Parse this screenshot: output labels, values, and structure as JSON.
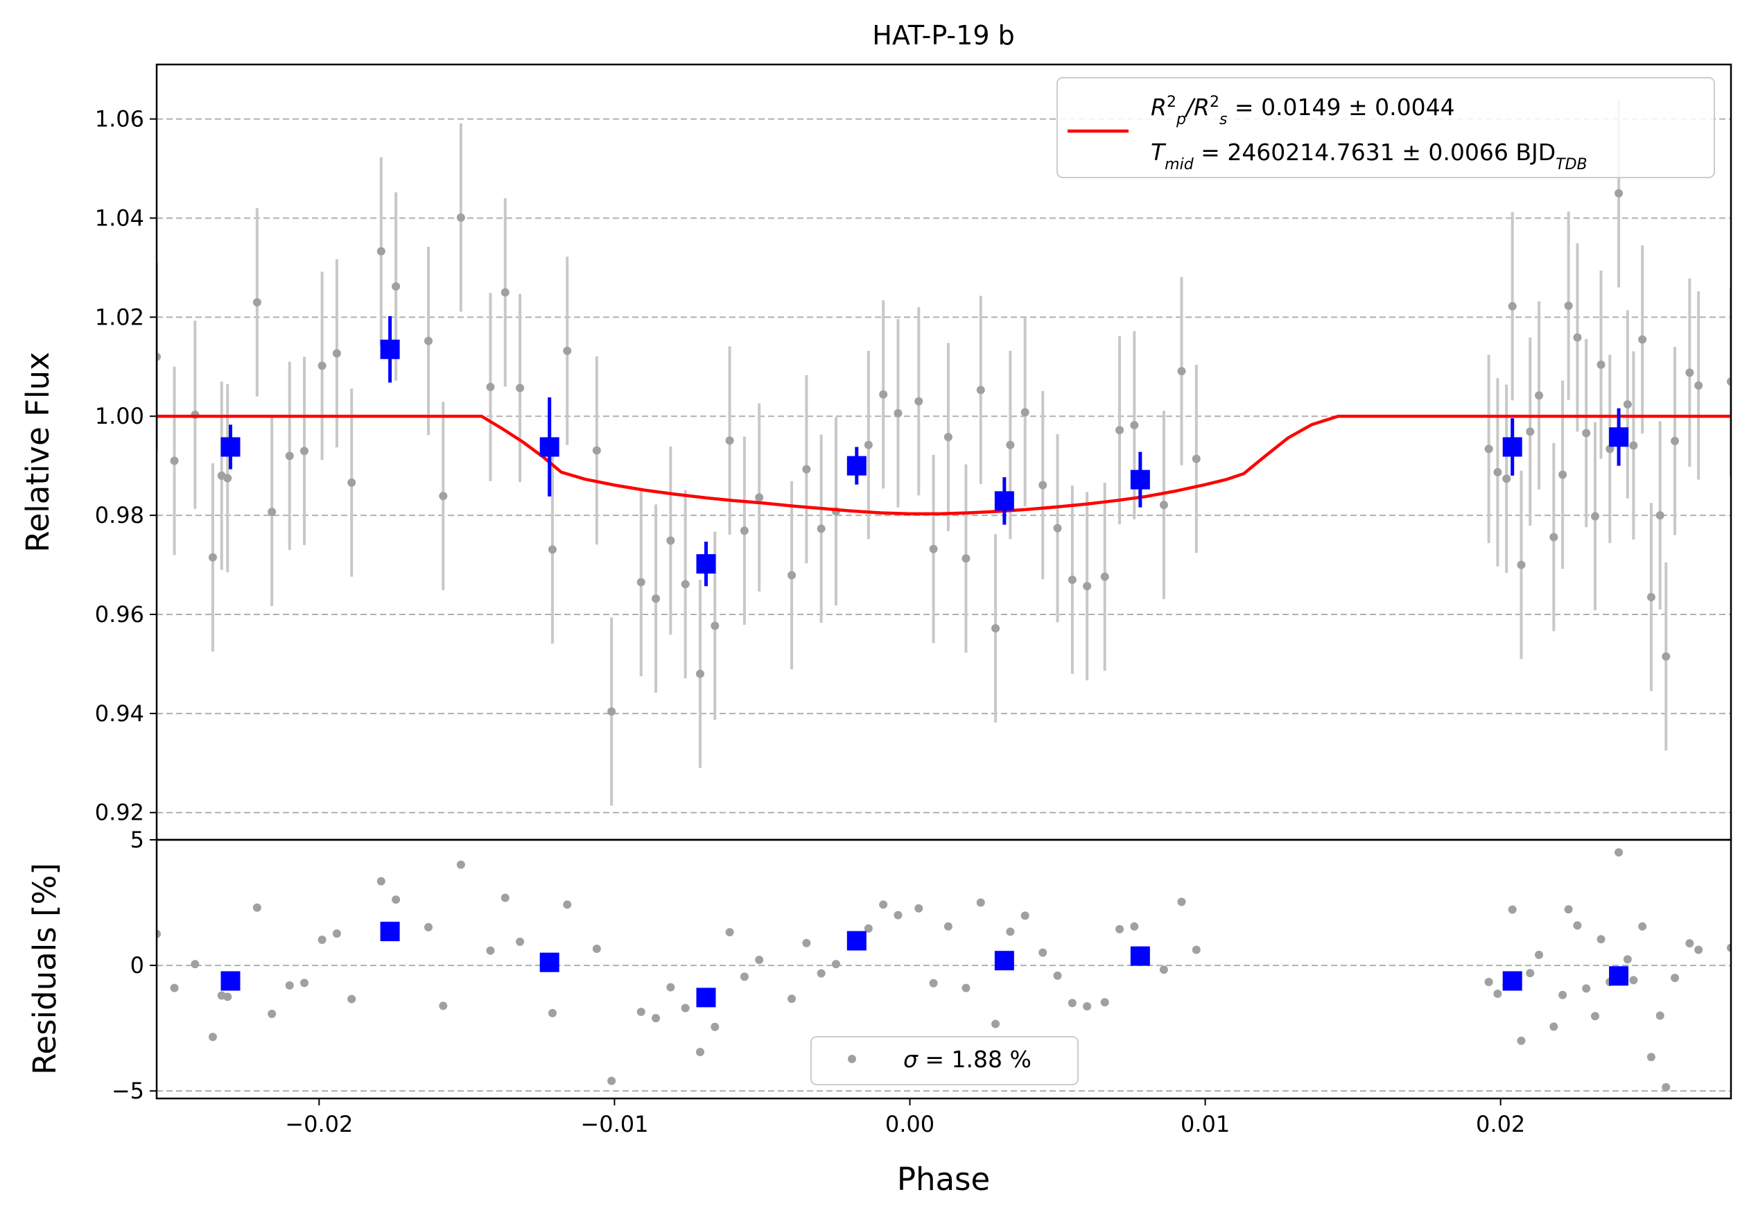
{
  "chart_data": {
    "type": "scatter",
    "title": "HAT-P-19 b",
    "xlabel": "Phase",
    "xlim": [
      -0.0255,
      0.0278
    ],
    "x_ticks": [
      -0.02,
      -0.01,
      0.0,
      0.01,
      0.02
    ],
    "x_tick_labels": [
      "−0.02",
      "−0.01",
      "0.00",
      "0.01",
      "0.02"
    ],
    "flux_panel": {
      "ylabel": "Relative Flux",
      "ylim": [
        0.9145,
        1.071
      ],
      "y_ticks": [
        0.92,
        0.94,
        0.96,
        0.98,
        1.0,
        1.02,
        1.04,
        1.06
      ],
      "y_tick_labels": [
        "0.92",
        "0.94",
        "0.96",
        "0.98",
        "1.00",
        "1.02",
        "1.04",
        "1.06"
      ],
      "grid": "horizontal dashed",
      "legend_position": "top-right",
      "legend": {
        "rp_label_main": "R",
        "rp_label_sub1": "p",
        "rp_label_mid": "/R",
        "rp_label_sub2": "s",
        "rp_label_value": " = 0.0149 ± 0.0044",
        "tmid_label_main": "T",
        "tmid_label_sub": "mid",
        "tmid_label_value": " = 2460214.7631 ± 0.0066 BJD",
        "tmid_label_unit_sub": "TDB"
      },
      "model": {
        "color": "#ff0000",
        "points": [
          [
            -0.0255,
            1.0
          ],
          [
            -0.0145,
            1.0
          ],
          [
            -0.0138,
            0.9975
          ],
          [
            -0.0131,
            0.9948
          ],
          [
            -0.0124,
            0.9917
          ],
          [
            -0.0118,
            0.9887
          ],
          [
            -0.011,
            0.9873
          ],
          [
            -0.01,
            0.9861
          ],
          [
            -0.009,
            0.9851
          ],
          [
            -0.008,
            0.9843
          ],
          [
            -0.007,
            0.9836
          ],
          [
            -0.006,
            0.983
          ],
          [
            -0.005,
            0.9825
          ],
          [
            -0.004,
            0.9819
          ],
          [
            -0.003,
            0.9814
          ],
          [
            -0.002,
            0.9809
          ],
          [
            -0.001,
            0.9805
          ],
          [
            0.0,
            0.9803
          ],
          [
            0.001,
            0.9803
          ],
          [
            0.002,
            0.9805
          ],
          [
            0.003,
            0.9808
          ],
          [
            0.004,
            0.9812
          ],
          [
            0.005,
            0.9817
          ],
          [
            0.006,
            0.9823
          ],
          [
            0.007,
            0.983
          ],
          [
            0.008,
            0.9838
          ],
          [
            0.009,
            0.9849
          ],
          [
            0.01,
            0.9862
          ],
          [
            0.0107,
            0.9872
          ],
          [
            0.0113,
            0.9884
          ],
          [
            0.012,
            0.9918
          ],
          [
            0.0128,
            0.9956
          ],
          [
            0.0136,
            0.9983
          ],
          [
            0.0145,
            1.0
          ],
          [
            0.0278,
            1.0
          ]
        ]
      },
      "raw_points": {
        "color": "#808080",
        "points": [
          [
            -0.0255,
            1.012,
            0.019
          ],
          [
            -0.0249,
            0.991,
            0.019
          ],
          [
            -0.0242,
            1.0003,
            0.019
          ],
          [
            -0.0236,
            0.9715,
            0.019
          ],
          [
            -0.0233,
            0.988,
            0.019
          ],
          [
            -0.0231,
            0.9875,
            0.019
          ],
          [
            -0.0221,
            1.023,
            0.019
          ],
          [
            -0.0216,
            0.9807,
            0.019
          ],
          [
            -0.021,
            0.992,
            0.019
          ],
          [
            -0.0205,
            0.993,
            0.019
          ],
          [
            -0.0199,
            1.0102,
            0.019
          ],
          [
            -0.0194,
            1.0127,
            0.019
          ],
          [
            -0.0189,
            0.9866,
            0.019
          ],
          [
            -0.0179,
            1.0333,
            0.019
          ],
          [
            -0.0174,
            1.0262,
            0.019
          ],
          [
            -0.0163,
            1.0152,
            0.019
          ],
          [
            -0.0158,
            0.9839,
            0.019
          ],
          [
            -0.0152,
            1.0401,
            0.019
          ],
          [
            -0.0142,
            1.0059,
            0.019
          ],
          [
            -0.0137,
            1.025,
            0.019
          ],
          [
            -0.0132,
            1.0057,
            0.019
          ],
          [
            -0.0121,
            0.9731,
            0.019
          ],
          [
            -0.0116,
            1.0132,
            0.019
          ],
          [
            -0.0106,
            0.9931,
            0.019
          ],
          [
            -0.0101,
            0.9404,
            0.019
          ],
          [
            -0.0091,
            0.9665,
            0.019
          ],
          [
            -0.0086,
            0.9632,
            0.019
          ],
          [
            -0.0081,
            0.9749,
            0.019
          ],
          [
            -0.0076,
            0.9661,
            0.019
          ],
          [
            -0.0071,
            0.948,
            0.019
          ],
          [
            -0.0066,
            0.9577,
            0.019
          ],
          [
            -0.0061,
            0.9951,
            0.019
          ],
          [
            -0.0056,
            0.9769,
            0.019
          ],
          [
            -0.0051,
            0.9836,
            0.019
          ],
          [
            -0.004,
            0.9679,
            0.019
          ],
          [
            -0.0035,
            0.9893,
            0.019
          ],
          [
            -0.003,
            0.9773,
            0.019
          ],
          [
            -0.0025,
            0.9808,
            0.019
          ],
          [
            -0.0014,
            0.9942,
            0.019
          ],
          [
            -0.0009,
            1.0044,
            0.019
          ],
          [
            -0.0004,
            1.0006,
            0.019
          ],
          [
            0.0003,
            1.003,
            0.019
          ],
          [
            0.0008,
            0.9732,
            0.019
          ],
          [
            0.0013,
            0.9958,
            0.019
          ],
          [
            0.0019,
            0.9713,
            0.019
          ],
          [
            0.0024,
            1.0053,
            0.019
          ],
          [
            0.0029,
            0.9572,
            0.019
          ],
          [
            0.0034,
            0.9942,
            0.019
          ],
          [
            0.0039,
            1.0008,
            0.019
          ],
          [
            0.0045,
            0.9861,
            0.019
          ],
          [
            0.005,
            0.9774,
            0.019
          ],
          [
            0.0055,
            0.967,
            0.019
          ],
          [
            0.006,
            0.9657,
            0.019
          ],
          [
            0.0066,
            0.9676,
            0.019
          ],
          [
            0.0071,
            0.9972,
            0.019
          ],
          [
            0.0076,
            0.9982,
            0.019
          ],
          [
            0.0086,
            0.9821,
            0.019
          ],
          [
            0.0092,
            1.0091,
            0.019
          ],
          [
            0.0097,
            0.9914,
            0.019
          ],
          [
            0.0196,
            0.9934,
            0.019
          ],
          [
            0.0199,
            0.9887,
            0.019
          ],
          [
            0.0202,
            0.9874,
            0.019
          ],
          [
            0.0204,
            1.0222,
            0.019
          ],
          [
            0.0207,
            0.97,
            0.019
          ],
          [
            0.021,
            0.9969,
            0.019
          ],
          [
            0.0213,
            1.0042,
            0.019
          ],
          [
            0.0218,
            0.9756,
            0.019
          ],
          [
            0.0221,
            0.9882,
            0.019
          ],
          [
            0.0223,
            1.0223,
            0.019
          ],
          [
            0.0226,
            1.0159,
            0.019
          ],
          [
            0.0229,
            0.9966,
            0.019
          ],
          [
            0.0232,
            0.9798,
            0.019
          ],
          [
            0.0234,
            1.0104,
            0.019
          ],
          [
            0.0237,
            0.9934,
            0.019
          ],
          [
            0.024,
            1.045,
            0.019
          ],
          [
            0.0243,
            1.0024,
            0.019
          ],
          [
            0.0245,
            0.9941,
            0.019
          ],
          [
            0.0248,
            1.0155,
            0.019
          ],
          [
            0.0251,
            0.9635,
            0.019
          ],
          [
            0.0254,
            0.98,
            0.019
          ],
          [
            0.0256,
            0.9515,
            0.019
          ],
          [
            0.0259,
            0.995,
            0.019
          ],
          [
            0.0264,
            1.0088,
            0.019
          ],
          [
            0.0267,
            1.0062,
            0.019
          ],
          [
            0.0278,
            1.007,
            0.019
          ]
        ]
      },
      "binned_points": {
        "color": "#0000ff",
        "points": [
          [
            -0.023,
            0.9938,
            0.0045
          ],
          [
            -0.0176,
            1.0135,
            0.0067
          ],
          [
            -0.0122,
            0.9938,
            0.01
          ],
          [
            -0.0069,
            0.9702,
            0.0045
          ],
          [
            -0.0018,
            0.99,
            0.0038
          ],
          [
            0.0032,
            0.9829,
            0.0048
          ],
          [
            0.0078,
            0.9872,
            0.0056
          ],
          [
            0.0204,
            0.9938,
            0.0058
          ],
          [
            0.024,
            0.9958,
            0.0058
          ]
        ]
      }
    },
    "residual_panel": {
      "ylabel": "Residuals [%]",
      "ylim": [
        -5.3,
        5.0
      ],
      "y_ticks": [
        -5,
        0,
        5
      ],
      "y_tick_labels": [
        "−5",
        "0",
        "5"
      ],
      "legend_position": "bottom-center",
      "legend": {
        "sigma_symbol": "σ",
        "sigma_value": " = 1.88 %"
      },
      "raw_points": [
        [
          -0.0255,
          1.25
        ],
        [
          -0.0249,
          -0.9
        ],
        [
          -0.0242,
          0.05
        ],
        [
          -0.0236,
          -2.85
        ],
        [
          -0.0233,
          -1.2
        ],
        [
          -0.0231,
          -1.25
        ],
        [
          -0.0221,
          2.3
        ],
        [
          -0.0216,
          -1.93
        ],
        [
          -0.021,
          -0.8
        ],
        [
          -0.0205,
          -0.7
        ],
        [
          -0.0199,
          1.02
        ],
        [
          -0.0194,
          1.27
        ],
        [
          -0.0189,
          -1.34
        ],
        [
          -0.0179,
          3.35
        ],
        [
          -0.0174,
          2.62
        ],
        [
          -0.0163,
          1.52
        ],
        [
          -0.0158,
          -1.61
        ],
        [
          -0.0152,
          4.01
        ],
        [
          -0.0142,
          0.59
        ],
        [
          -0.0137,
          2.69
        ],
        [
          -0.0132,
          0.94
        ],
        [
          -0.0121,
          -1.9
        ],
        [
          -0.0116,
          2.42
        ],
        [
          -0.0106,
          0.66
        ],
        [
          -0.0101,
          -4.6
        ],
        [
          -0.0091,
          -1.85
        ],
        [
          -0.0086,
          -2.1
        ],
        [
          -0.0081,
          -0.87
        ],
        [
          -0.0076,
          -1.7
        ],
        [
          -0.0071,
          -3.45
        ],
        [
          -0.0066,
          -2.45
        ],
        [
          -0.0061,
          1.32
        ],
        [
          -0.0056,
          -0.45
        ],
        [
          -0.0051,
          0.22
        ],
        [
          -0.004,
          -1.33
        ],
        [
          -0.0035,
          0.89
        ],
        [
          -0.003,
          -0.32
        ],
        [
          -0.0025,
          0.05
        ],
        [
          -0.0014,
          1.47
        ],
        [
          -0.0009,
          2.42
        ],
        [
          -0.0004,
          2.0
        ],
        [
          0.0003,
          2.27
        ],
        [
          0.0008,
          -0.71
        ],
        [
          0.0013,
          1.55
        ],
        [
          0.0019,
          -0.9
        ],
        [
          0.0024,
          2.5
        ],
        [
          0.0029,
          -2.33
        ],
        [
          0.0034,
          1.34
        ],
        [
          0.0039,
          1.98
        ],
        [
          0.0045,
          0.51
        ],
        [
          0.005,
          -0.41
        ],
        [
          0.0055,
          -1.5
        ],
        [
          0.006,
          -1.63
        ],
        [
          0.0066,
          -1.47
        ],
        [
          0.0071,
          1.44
        ],
        [
          0.0076,
          1.55
        ],
        [
          0.0086,
          -0.17
        ],
        [
          0.0092,
          2.53
        ],
        [
          0.0097,
          0.62
        ],
        [
          0.0196,
          -0.66
        ],
        [
          0.0199,
          -1.13
        ],
        [
          0.0202,
          -0.8
        ],
        [
          0.0204,
          2.22
        ],
        [
          0.0207,
          -3.0
        ],
        [
          0.021,
          -0.31
        ],
        [
          0.0213,
          0.42
        ],
        [
          0.0218,
          -2.44
        ],
        [
          0.0221,
          -1.18
        ],
        [
          0.0223,
          2.23
        ],
        [
          0.0226,
          1.59
        ],
        [
          0.0229,
          -0.92
        ],
        [
          0.0232,
          -2.02
        ],
        [
          0.0234,
          1.04
        ],
        [
          0.0237,
          -0.66
        ],
        [
          0.024,
          4.5
        ],
        [
          0.0243,
          0.24
        ],
        [
          0.0245,
          -0.59
        ],
        [
          0.0248,
          1.55
        ],
        [
          0.0251,
          -3.65
        ],
        [
          0.0254,
          -2.0
        ],
        [
          0.0256,
          -4.85
        ],
        [
          0.0259,
          -0.5
        ],
        [
          0.0264,
          0.88
        ],
        [
          0.0267,
          0.62
        ],
        [
          0.0278,
          0.7
        ]
      ],
      "binned_points": [
        [
          -0.023,
          -0.62
        ],
        [
          -0.0176,
          1.35
        ],
        [
          -0.0122,
          0.12
        ],
        [
          -0.0069,
          -1.28
        ],
        [
          -0.0018,
          0.98
        ],
        [
          0.0032,
          0.19
        ],
        [
          0.0078,
          0.37
        ],
        [
          0.0204,
          -0.62
        ],
        [
          0.024,
          -0.42
        ]
      ]
    }
  }
}
